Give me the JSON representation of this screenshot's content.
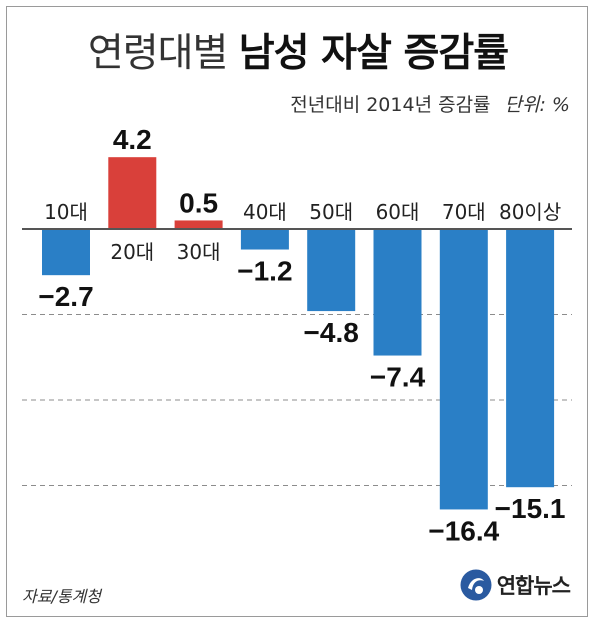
{
  "title": {
    "light": "연령대별",
    "bold": "남성 자살 증감률"
  },
  "subtitle": {
    "text": "전년대비 2014년 증감률",
    "unit": "단위: %"
  },
  "source": "자료/통계청",
  "logo": {
    "text": "연합뉴스"
  },
  "colors": {
    "positive": "#d9403a",
    "negative": "#2a7fc6"
  },
  "chart_data": {
    "type": "bar",
    "categories": [
      "10대",
      "20대",
      "30대",
      "40대",
      "50대",
      "60대",
      "70대",
      "80이상"
    ],
    "values": [
      -2.7,
      4.2,
      0.5,
      -1.2,
      -4.8,
      -7.4,
      -16.4,
      -15.1
    ],
    "value_labels": [
      "−2.7",
      "4.2",
      "0.5",
      "−1.2",
      "−4.8",
      "−7.4",
      "−16.4",
      "−15.1"
    ],
    "xlabel": "",
    "ylabel": "",
    "unit": "%",
    "ylim": [
      -16.4,
      4.2
    ],
    "grid": "dashed"
  }
}
